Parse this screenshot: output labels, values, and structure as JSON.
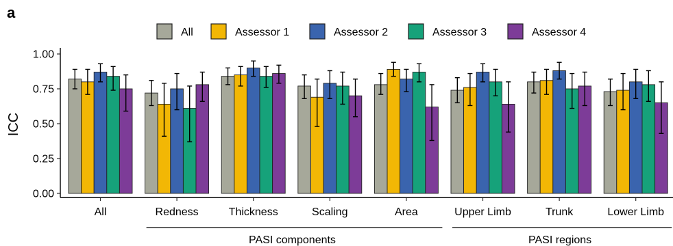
{
  "panel_label": "a",
  "chart_data": {
    "type": "bar",
    "title": "",
    "xlabel": "",
    "ylabel": "ICC",
    "ylim": [
      0,
      1.0
    ],
    "yticks": [
      "0.00",
      "0.25",
      "0.50",
      "0.75",
      "1.00"
    ],
    "grid": false,
    "legend_position": "top",
    "categories": [
      "All",
      "Redness",
      "Thickness",
      "Scaling",
      "Area",
      "Upper Limb",
      "Trunk",
      "Lower Limb"
    ],
    "groups": [
      {
        "label": "PASI components",
        "categories": [
          "Redness",
          "Thickness",
          "Scaling",
          "Area"
        ]
      },
      {
        "label": "PASI regions",
        "categories": [
          "Upper Limb",
          "Trunk",
          "Lower Limb"
        ]
      }
    ],
    "series": [
      {
        "name": "All",
        "color": "#A6A89A",
        "values": [
          0.82,
          0.72,
          0.84,
          0.77,
          0.78,
          0.74,
          0.8,
          0.73
        ],
        "error_low": [
          0.75,
          0.63,
          0.78,
          0.68,
          0.71,
          0.65,
          0.72,
          0.63
        ],
        "error_high": [
          0.89,
          0.81,
          0.9,
          0.85,
          0.86,
          0.83,
          0.87,
          0.82
        ]
      },
      {
        "name": "Assessor 1",
        "color": "#F2B705",
        "values": [
          0.8,
          0.64,
          0.85,
          0.69,
          0.89,
          0.76,
          0.81,
          0.74
        ],
        "error_low": [
          0.71,
          0.41,
          0.77,
          0.48,
          0.84,
          0.63,
          0.71,
          0.6
        ],
        "error_high": [
          0.89,
          0.79,
          0.91,
          0.82,
          0.94,
          0.86,
          0.89,
          0.86
        ]
      },
      {
        "name": "Assessor 2",
        "color": "#3A64AE",
        "values": [
          0.87,
          0.75,
          0.9,
          0.79,
          0.82,
          0.87,
          0.88,
          0.8
        ],
        "error_low": [
          0.8,
          0.6,
          0.84,
          0.68,
          0.73,
          0.8,
          0.82,
          0.68
        ],
        "error_high": [
          0.93,
          0.86,
          0.95,
          0.88,
          0.89,
          0.93,
          0.94,
          0.89
        ]
      },
      {
        "name": "Assessor 3",
        "color": "#16A27A",
        "values": [
          0.84,
          0.61,
          0.84,
          0.77,
          0.87,
          0.8,
          0.75,
          0.78
        ],
        "error_low": [
          0.74,
          0.37,
          0.76,
          0.64,
          0.8,
          0.7,
          0.61,
          0.66
        ],
        "error_high": [
          0.91,
          0.77,
          0.91,
          0.87,
          0.93,
          0.89,
          0.86,
          0.88
        ]
      },
      {
        "name": "Assessor 4",
        "color": "#7D3C98",
        "values": [
          0.75,
          0.78,
          0.86,
          0.7,
          0.62,
          0.64,
          0.77,
          0.65
        ],
        "error_low": [
          0.59,
          0.66,
          0.79,
          0.55,
          0.38,
          0.44,
          0.63,
          0.43
        ],
        "error_high": [
          0.85,
          0.87,
          0.92,
          0.82,
          0.78,
          0.8,
          0.87,
          0.8
        ]
      }
    ]
  }
}
